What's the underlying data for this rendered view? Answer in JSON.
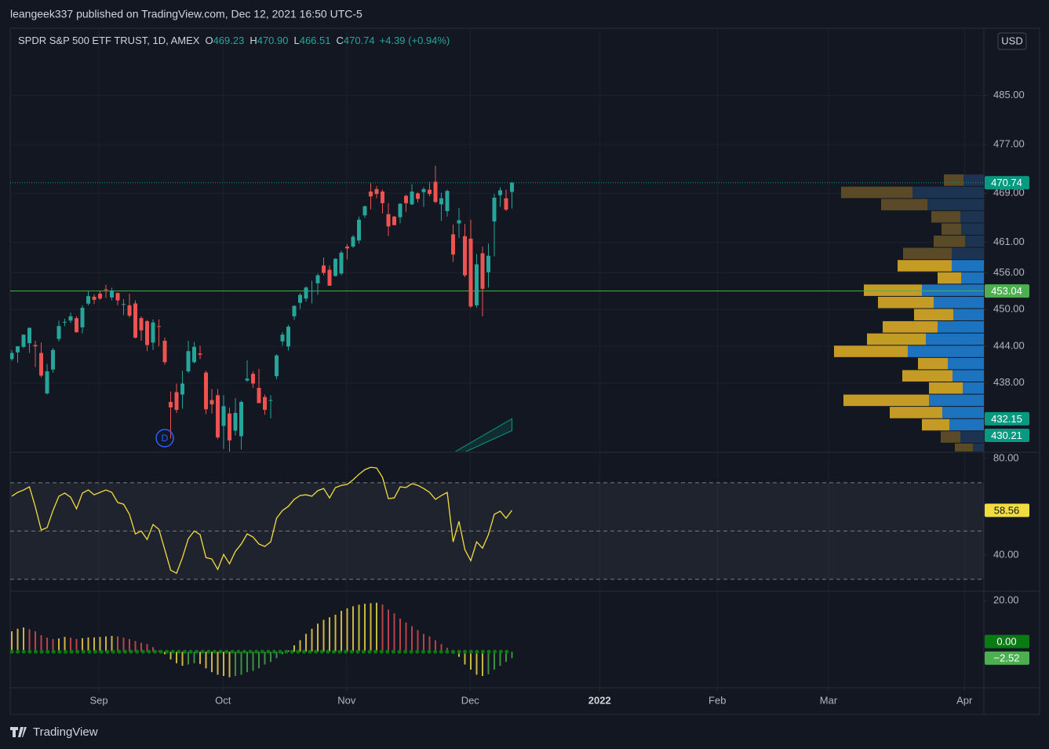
{
  "header": {
    "published": "leangeek337 published on TradingView.com, Dec 12, 2021 16:50 UTC-5"
  },
  "footer": {
    "brand": "TradingView"
  },
  "chart_data": [
    {
      "type": "candlestick",
      "title": "SPDR S&P 500 ETF TRUST, 1D, AMEX",
      "legend": [
        {
          "key": "O",
          "value": "469.23"
        },
        {
          "key": "H",
          "value": "470.90"
        },
        {
          "key": "L",
          "value": "466.51"
        },
        {
          "key": "C",
          "value": "470.74"
        }
      ],
      "change": "+4.39 (+0.94%)",
      "currency": "USD",
      "open": [
        441.9,
        443.0,
        443.9,
        444.5,
        444.2,
        442.9,
        436.3,
        440.2,
        445.2,
        447.97,
        448.2,
        448.6,
        447.1,
        450.97,
        452.1,
        452.6,
        453.3,
        451.98,
        452.7,
        450.9,
        450.7,
        451.0,
        448.6,
        448.1,
        444.6,
        447.3,
        444.9,
        434.9,
        436.5,
        436.1,
        439.9,
        441.4,
        442.8,
        439.7,
        435.2,
        436.0,
        430.98,
        433.0,
        430.2,
        429.3,
        438.4,
        439.5,
        437.2,
        435.7,
        435.2,
        439.1,
        444.8,
        443.97,
        448.9,
        451.1,
        451.8,
        453.1,
        454.3,
        457.2,
        456.5,
        455.5,
        455.9,
        460.3,
        460.3,
        461.3,
        465.4,
        469.3,
        469.7,
        469.3,
        465.6,
        465.2,
        465.1,
        468.6,
        467.2,
        469.0,
        469.2,
        469.6,
        470.9,
        467.2,
        466.1,
        462.3,
        464.1,
        462.0,
        461.6,
        450.7,
        459.2,
        456.1,
        464.4,
        468.7,
        468.2,
        469.23
      ],
      "high": [
        443.4,
        444.0,
        445.9,
        447.1,
        444.9,
        444.6,
        441.1,
        443.7,
        448.2,
        448.5,
        449.5,
        448.9,
        450.7,
        453.1,
        452.5,
        453.1,
        454.05,
        453.6,
        452.8,
        451.7,
        452.6,
        451.5,
        448.9,
        448.3,
        448.4,
        448.4,
        445.4,
        436.6,
        437.9,
        440.0,
        444.9,
        444.7,
        444.1,
        440.0,
        437.0,
        437.0,
        436.0,
        433.96,
        435.5,
        435.1,
        441.7,
        439.9,
        440.3,
        436.1,
        436.0,
        442.7,
        446.3,
        447.5,
        450.7,
        452.7,
        453.8,
        454.7,
        455.9,
        458.5,
        457.2,
        458.4,
        459.6,
        460.7,
        462.2,
        465.2,
        467.0,
        470.7,
        470.2,
        469.6,
        467.4,
        465.3,
        467.4,
        468.8,
        470.5,
        469.2,
        470.0,
        470.9,
        473.54,
        469.1,
        469.6,
        463.9,
        466.6,
        464.0,
        464.7,
        459.1,
        460.3,
        460.8,
        468.9,
        470.0,
        469.6,
        470.9
      ],
      "low": [
        441.6,
        441.3,
        443.7,
        442.9,
        440.6,
        438.9,
        436.1,
        439.7,
        444.8,
        447.3,
        447.8,
        446.2,
        446.1,
        450.7,
        450.9,
        451.6,
        451.9,
        451.5,
        450.7,
        449.1,
        448.7,
        445.3,
        444.9,
        443.2,
        443.4,
        444.0,
        441.0,
        428.9,
        433.1,
        433.8,
        439.6,
        441.2,
        441.9,
        432.9,
        433.0,
        428.8,
        427.2,
        426.4,
        429.4,
        427.1,
        438.2,
        437.2,
        434.7,
        432.8,
        432.2,
        438.6,
        444.1,
        443.3,
        448.3,
        450.1,
        451.3,
        451.0,
        452.4,
        455.6,
        453.9,
        455.4,
        455.6,
        458.2,
        460.1,
        460.8,
        464.99,
        466.4,
        468.2,
        465.7,
        462.0,
        463.8,
        464.1,
        466.0,
        467.1,
        467.5,
        466.8,
        468.5,
        467.4,
        464.5,
        465.2,
        457.8,
        461.7,
        455.3,
        450.3,
        450.3,
        448.9,
        453.6,
        458.7,
        466.8,
        466.1,
        466.51
      ],
      "close": [
        442.9,
        444.0,
        445.9,
        447.0,
        444.0,
        439.2,
        439.9,
        443.4,
        447.3,
        448.0,
        448.9,
        446.3,
        450.3,
        452.2,
        451.6,
        451.8,
        453.2,
        453.1,
        451.5,
        450.9,
        449.0,
        445.4,
        446.6,
        444.2,
        447.9,
        447.2,
        441.4,
        434.0,
        433.6,
        437.9,
        443.2,
        443.9,
        442.6,
        433.7,
        434.5,
        429.1,
        434.2,
        428.6,
        433.1,
        434.9,
        438.7,
        437.9,
        434.7,
        433.6,
        435.2,
        442.5,
        445.9,
        447.2,
        450.6,
        452.4,
        453.6,
        453.1,
        455.6,
        456.0,
        453.9,
        458.3,
        459.3,
        460.0,
        461.9,
        464.7,
        466.9,
        468.5,
        468.9,
        467.4,
        463.6,
        463.8,
        467.3,
        467.4,
        469.3,
        468.1,
        469.7,
        468.9,
        467.6,
        468.2,
        469.4,
        459.0,
        464.6,
        455.6,
        450.5,
        457.4,
        453.4,
        458.8,
        468.3,
        469.5,
        466.35,
        470.74
      ],
      "up_color": "#26a69a",
      "down_color": "#ef5350",
      "xlim": [
        -0.27,
        165.2
      ],
      "xticks": [
        {
          "value": 14.8,
          "label": "Sep"
        },
        {
          "value": 35.9,
          "label": "Oct"
        },
        {
          "value": 56.9,
          "label": "Nov"
        },
        {
          "value": 77.9,
          "label": "Dec"
        },
        {
          "value": 99.9,
          "label": "2022"
        },
        {
          "value": 119.9,
          "label": "Feb"
        },
        {
          "value": 138.8,
          "label": "Mar"
        },
        {
          "value": 161.9,
          "label": "Apr"
        }
      ],
      "ylim": [
        426.8,
        496.0
      ],
      "yticks": [
        {
          "value": 485,
          "label": "485.00"
        },
        {
          "value": 477,
          "label": "477.00"
        },
        {
          "value": 469,
          "label": "469.00"
        },
        {
          "value": 461,
          "label": "461.00"
        },
        {
          "value": 456,
          "label": "456.00"
        },
        {
          "value": 450,
          "label": "450.00"
        },
        {
          "value": 444,
          "label": "444.00"
        },
        {
          "value": 438,
          "label": "438.00"
        }
      ],
      "grid": true,
      "last_price": 470.74,
      "last_color": "#089981",
      "hline": {
        "value": 453.04,
        "color": "#4caf50"
      },
      "channel": {
        "x": [
          72,
          85
        ],
        "upper": [
          424.9,
          432.15
        ],
        "lower": [
          424.5,
          430.21
        ],
        "color": "#089981"
      },
      "events": [
        {
          "x": 26,
          "label": "D"
        }
      ],
      "volume_profile": {
        "price": [
          471.1,
          469.1,
          467.1,
          465.1,
          463.1,
          461.1,
          459.1,
          457.1,
          455.1,
          453.1,
          451.1,
          449.1,
          447.1,
          445.1,
          443.1,
          441.1,
          439.1,
          437.1,
          435.1,
          433.1,
          431.1,
          429.1,
          427.1
        ],
        "up": [
          26,
          91,
          72,
          30,
          29,
          24,
          41,
          41,
          29,
          79,
          64,
          39,
          59,
          74,
          97,
          46,
          40,
          27,
          70,
          53,
          44,
          30,
          14
        ],
        "down": [
          25,
          91,
          59,
          37,
          25,
          40,
          62,
          69,
          30,
          74,
          71,
          50,
          70,
          75,
          94,
          38,
          64,
          43,
          109,
          67,
          35,
          25,
          23
        ],
        "value_area": [
          431.1,
          457.1
        ],
        "up_color": "#1e73be",
        "down_color": "#c49b24",
        "faded_up_color": "#1c3352",
        "faded_down_color": "#5a4a27"
      }
    },
    {
      "type": "line",
      "values": [
        64.4,
        66,
        67,
        68.3,
        60,
        50.4,
        51.4,
        58.5,
        64.4,
        65.7,
        64,
        59.2,
        65.7,
        67,
        65,
        66,
        67,
        66,
        61.8,
        61.1,
        56.9,
        48.8,
        50,
        46.5,
        52.7,
        50.7,
        42.3,
        33.8,
        32.5,
        39,
        46.8,
        50,
        48.5,
        39,
        38.4,
        34.1,
        40.3,
        36.4,
        41.6,
        44.6,
        48.8,
        47.5,
        44.6,
        43.6,
        45.5,
        55.3,
        58.5,
        60.2,
        63.1,
        64.7,
        65,
        64.4,
        66.7,
        67.6,
        63.7,
        68,
        68.9,
        69.3,
        71.2,
        73.5,
        75.4,
        76.4,
        76.1,
        72.2,
        63.4,
        63.7,
        68.3,
        68,
        69.6,
        68.9,
        67.6,
        66,
        63.1,
        64.7,
        66,
        45.5,
        54,
        42.3,
        37.7,
        45.5,
        42.9,
        48.5,
        56.9,
        58.2,
        55.3,
        58.56
      ],
      "color": "#f2dd40",
      "ylim": [
        25.4,
        82.3
      ],
      "yticks": [
        {
          "value": 80,
          "label": "80.00"
        },
        {
          "value": 40,
          "label": "40.00"
        }
      ],
      "bands": [
        70,
        50,
        30
      ]
    },
    {
      "type": "bar",
      "values": [
        8,
        9,
        9.5,
        8.8,
        8,
        6.5,
        5.5,
        5,
        5.2,
        5.8,
        5.5,
        5,
        5.3,
        5.6,
        5.6,
        5.8,
        6,
        6.2,
        6,
        5.5,
        5,
        4.2,
        3.5,
        3,
        1.8,
        0.5,
        -1,
        -3,
        -4.5,
        -5.5,
        -5,
        -4.5,
        -4.8,
        -6.5,
        -8,
        -9,
        -9.5,
        -10,
        -9.5,
        -9,
        -8,
        -7.5,
        -6.5,
        -5,
        -4,
        -2.5,
        -1,
        0.5,
        2.5,
        4.5,
        7,
        9,
        11,
        12.5,
        13.5,
        14.5,
        16,
        17,
        17.8,
        18.4,
        18.8,
        19,
        19.2,
        18.5,
        16.5,
        15,
        13,
        11.5,
        10,
        8.5,
        7,
        6,
        4.5,
        3,
        1.5,
        -0.8,
        -2,
        -5,
        -7,
        -9,
        -9.5,
        -8.8,
        -7,
        -5.5,
        -4,
        -2.52
      ],
      "value_labels": {
        "85": "−2.52"
      },
      "ylim": [
        -13.8,
        23.4
      ],
      "yticks": [
        {
          "value": 20,
          "label": "20.00"
        }
      ],
      "colors": {
        "pos_up": "#cbb740",
        "pos_down": "#b8434a",
        "neg_down": "#cbb740",
        "neg_up": "#3d8f42"
      },
      "zero": {
        "value": 0,
        "label": "0.00",
        "color": "#0a7a14"
      },
      "last_color": "#4caf50"
    }
  ]
}
